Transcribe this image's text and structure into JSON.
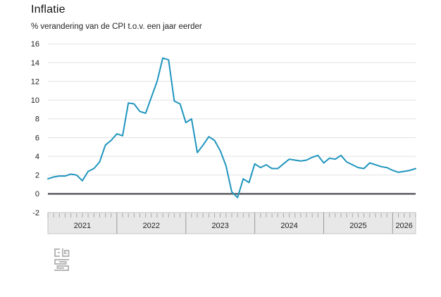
{
  "header": {
    "title": "Inflatie",
    "subtitle": "% verandering van de CPI t.o.v. een jaar eerder"
  },
  "chart_data": {
    "type": "line",
    "title": "Inflatie",
    "subtitle": "% verandering van de CPI t.o.v. een jaar eerder",
    "frequency": "monthly",
    "x_start": "2021-01",
    "x_end": "2026-05",
    "series": [
      {
        "name": "CPI % verandering t.o.v. een jaar eerder",
        "values": [
          1.6,
          1.8,
          1.9,
          1.9,
          2.1,
          2.0,
          1.4,
          2.4,
          2.7,
          3.4,
          5.2,
          5.7,
          6.4,
          6.2,
          9.7,
          9.6,
          8.8,
          8.6,
          10.3,
          12.0,
          14.5,
          14.3,
          9.9,
          9.6,
          7.6,
          8.0,
          4.4,
          5.2,
          6.1,
          5.7,
          4.6,
          3.0,
          0.2,
          -0.4,
          1.6,
          1.2,
          3.2,
          2.8,
          3.1,
          2.7,
          2.7,
          3.2,
          3.7,
          3.6,
          3.5,
          3.6,
          3.9,
          4.1,
          3.3,
          3.8,
          3.7,
          4.1,
          3.4,
          3.1,
          2.8,
          2.7,
          3.3,
          3.1,
          2.9,
          2.8,
          2.5,
          2.3,
          2.4,
          2.5,
          2.7
        ]
      }
    ],
    "year_labels": [
      "2021",
      "2022",
      "2023",
      "2024",
      "2025",
      "2026"
    ],
    "yticks": [
      16,
      14,
      12,
      10,
      8,
      6,
      4,
      2,
      0,
      -2
    ],
    "ylim": [
      -2,
      16
    ],
    "grid": true,
    "legend": false,
    "line_color": "#2095be",
    "zero_line_color": "#55565c",
    "grid_color": "#e2e2e2",
    "axis_band_color": "#e8e8e8",
    "axis_band_border_color": "#c6c6c6",
    "tick_color": "#a8a8a8",
    "year_separator_color": "#9a9a9a",
    "tick_label_color": "#222222"
  },
  "footer": {
    "logo_name": "cbs-logo"
  }
}
